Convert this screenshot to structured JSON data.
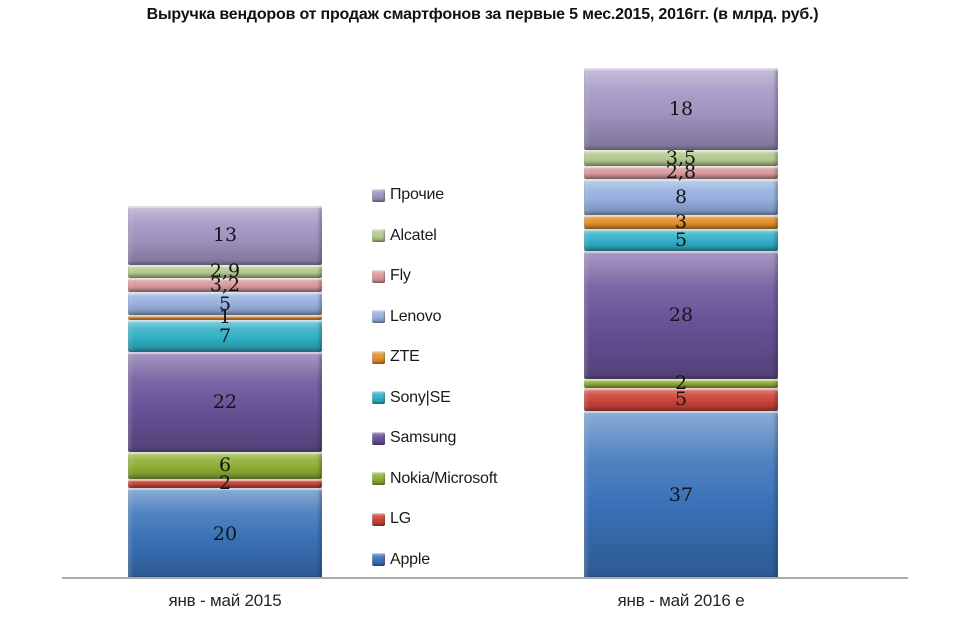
{
  "title": "Выручка вендоров от продаж смартфонов за первые 5 мес.2015, 2016гг. (в млрд. руб.)",
  "chart_data": {
    "type": "bar",
    "stacked": true,
    "orientation": "vertical-columns",
    "unit": "млрд. руб.",
    "background": "#ffffff",
    "grid": false,
    "axis_line_color": "#ababab",
    "label_decimal_separator": ",",
    "categories": [
      "янв - май 2015",
      "янв - май 2016 e"
    ],
    "series": [
      {
        "name": "Apple",
        "color": "#3a72b8",
        "values": [
          20,
          37
        ],
        "labels": [
          "20",
          "37"
        ]
      },
      {
        "name": "LG",
        "color": "#cc4437",
        "values": [
          2,
          5
        ],
        "labels": [
          "2",
          "5"
        ]
      },
      {
        "name": "Nokia/Microsoft",
        "color": "#8fae35",
        "values": [
          6,
          2
        ],
        "labels": [
          "6",
          "2"
        ]
      },
      {
        "name": "Samsung",
        "color": "#6a5299",
        "values": [
          22,
          28
        ],
        "labels": [
          "22",
          "28"
        ]
      },
      {
        "name": "Sony|SE",
        "color": "#31b0c6",
        "values": [
          7,
          5
        ],
        "labels": [
          "7",
          "5"
        ]
      },
      {
        "name": "ZTE",
        "color": "#e3902c",
        "values": [
          1,
          3
        ],
        "labels": [
          "1",
          "3"
        ]
      },
      {
        "name": "Lenovo",
        "color": "#95afdf",
        "values": [
          5,
          8
        ],
        "labels": [
          "5",
          "8"
        ]
      },
      {
        "name": "Fly",
        "color": "#d9999c",
        "values": [
          3.2,
          2.8
        ],
        "labels": [
          "3,2",
          "2,8"
        ]
      },
      {
        "name": "Alcatel",
        "color": "#b3ca8f",
        "values": [
          2.9,
          3.5
        ],
        "labels": [
          "2,9",
          "3,5"
        ]
      },
      {
        "name": "Прочие",
        "color": "#a093c0",
        "values": [
          13,
          18
        ],
        "labels": [
          "13",
          "18"
        ]
      }
    ],
    "legend": {
      "position": "center-column-between-bars",
      "order_top_to_bottom": [
        "Прочие",
        "Alcatel",
        "Fly",
        "Lenovo",
        "ZTE",
        "Sony|SE",
        "Samsung",
        "Nokia/Microsoft",
        "LG",
        "Apple"
      ]
    }
  }
}
